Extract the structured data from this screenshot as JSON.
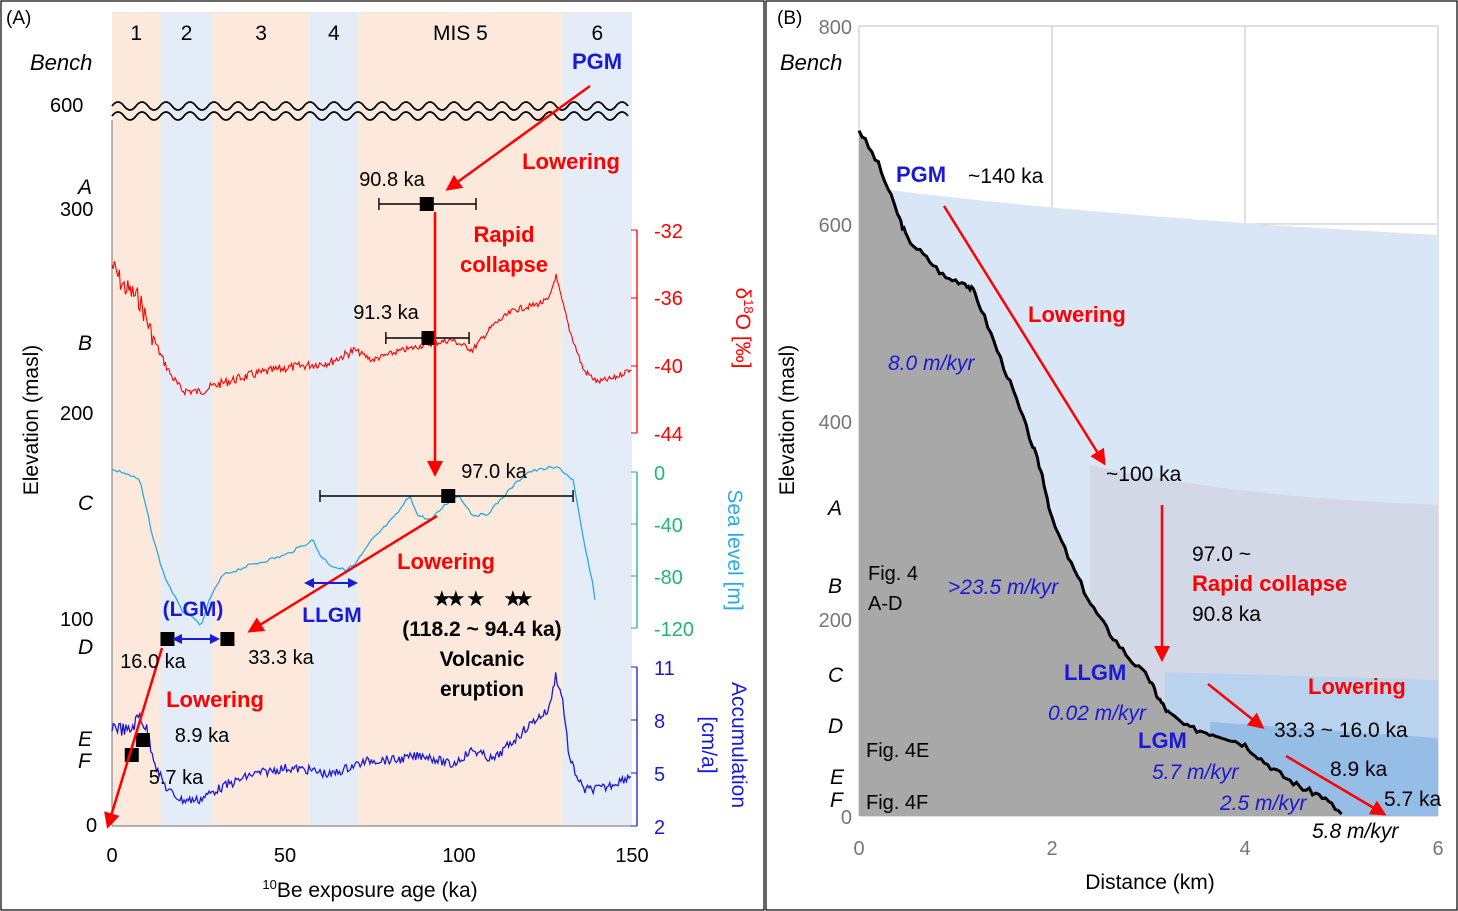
{
  "panel_a": {
    "label": "(A)",
    "bench_label": "Bench",
    "mis": {
      "stages": [
        {
          "label": "1",
          "start": 0,
          "end": 14,
          "color": "#fde9dc"
        },
        {
          "label": "2",
          "start": 14,
          "end": 29,
          "color": "#e3ecf7"
        },
        {
          "label": "3",
          "start": 29,
          "end": 57,
          "color": "#fde9dc"
        },
        {
          "label": "4",
          "start": 57,
          "end": 71,
          "color": "#e3ecf7"
        },
        {
          "label": "MIS 5",
          "start": 71,
          "end": 130,
          "color": "#fde9dc"
        },
        {
          "label": "6",
          "start": 130,
          "end": 150,
          "color": "#e3ecf7"
        }
      ]
    },
    "left_axis": {
      "label": "Elevation (masl)",
      "ticks": [
        "0",
        "100",
        "200",
        "300",
        "600"
      ],
      "bench_letters": [
        "A",
        "B",
        "C",
        "D",
        "E",
        "F"
      ]
    },
    "x_axis": {
      "label_sup": "10",
      "label_rest": "Be exposure age (ka)",
      "ticks": [
        "0",
        "50",
        "100",
        "150"
      ],
      "range": [
        0,
        150
      ]
    },
    "d18o_axis": {
      "label_pre": "δ",
      "label_sup": "18",
      "label_post": "O [‰]",
      "ticks": [
        "-32",
        "-36",
        "-40",
        "-44"
      ],
      "color": "#ff0000"
    },
    "sea_axis": {
      "label": "Sea level [m]",
      "ticks": [
        "0",
        "-40",
        "-80",
        "-120"
      ],
      "color": "#22b573"
    },
    "acc_axis": {
      "label_line1": "Accumulation",
      "label_line2": "[cm/a]",
      "ticks": [
        "11",
        "8",
        "5",
        "2"
      ],
      "color": "#1a1ad6"
    },
    "annotations": {
      "pgm": "PGM",
      "lowering": "Lowering",
      "rapid1": "Rapid",
      "rapid2": "collapse",
      "lgm": "(LGM)",
      "llgm": "LLGM",
      "volcanic_range": "(118.2 ~ 94.4 ka)",
      "volcanic1": "Volcanic",
      "volcanic2": "eruption",
      "age_a": "90.8 ka",
      "age_b": "91.3 ka",
      "age_c": "97.0 ka",
      "age_d1": "16.0 ka",
      "age_d2": "33.3 ka",
      "age_e": "8.9 ka",
      "age_f": "5.7 ka"
    }
  },
  "panel_b": {
    "label": "(B)",
    "bench_label": "Bench",
    "y_axis": {
      "label": "Elevation (masl)",
      "ticks": [
        "0",
        "200",
        "400",
        "600",
        "800"
      ]
    },
    "x_axis": {
      "label": "Distance (km)",
      "ticks": [
        "0",
        "2",
        "4",
        "6"
      ]
    },
    "bench_letters": [
      "A",
      "B",
      "C",
      "D",
      "E",
      "F"
    ],
    "annotations": {
      "pgm": "PGM",
      "pgm_age": "~140 ka",
      "lowering_top": "Lowering",
      "rate1": "8.0 m/kyr",
      "age_100": "~100 ka",
      "fig_ad1": "Fig. 4",
      "fig_ad2": "A-D",
      "rate2": ">23.5 m/kyr",
      "collapse_top": "97.0 ~",
      "collapse": "Rapid collapse",
      "collapse_bot": "90.8 ka",
      "llgm": "LLGM",
      "rate3": "0.02 m/kyr",
      "lgm": "LGM",
      "rate4": "5.7 m/kyr",
      "lowering_bottom": "Lowering",
      "age_range": "33.3 ~ 16.0 ka",
      "age_89": "8.9 ka",
      "age_57": "5.7 ka",
      "rate5": "2.5 m/kyr",
      "rate6": "5.8 m/kyr",
      "fig_4e": "Fig. 4E",
      "fig_4f": "Fig. 4F"
    }
  },
  "chart_data": [
    {
      "type": "scatter",
      "title": "",
      "xlabel": "10Be exposure age (ka)",
      "ylabel": "Elevation (masl)",
      "xlim": [
        0,
        150
      ],
      "series": [
        {
          "name": "Bench exposure ages",
          "points": [
            {
              "bench": "A",
              "age": 90.8,
              "err_low": 77,
              "err_high": 105
            },
            {
              "bench": "B",
              "age": 91.3,
              "err_low": 79,
              "err_high": 103
            },
            {
              "bench": "C",
              "age": 97.0,
              "err_low": 60,
              "err_high": 133
            },
            {
              "bench": "D",
              "age": 16.0
            },
            {
              "bench": "D",
              "age": 33.3
            },
            {
              "bench": "E",
              "age": 8.9
            },
            {
              "bench": "F",
              "age": 5.7
            }
          ]
        }
      ]
    },
    {
      "type": "line",
      "title": "",
      "xlabel": "Distance (km)",
      "ylabel": "Elevation (masl)",
      "xlim": [
        0,
        6
      ],
      "ylim": [
        0,
        800
      ],
      "series": [
        {
          "name": "Valley profile",
          "x": [
            0,
            0.2,
            0.4,
            0.5,
            0.7,
            0.9,
            1.1,
            1.2,
            1.4,
            1.6,
            1.8,
            1.9,
            2.0,
            2.2,
            2.4,
            2.6,
            2.8,
            3.0,
            3.1,
            3.2,
            3.4,
            3.6,
            3.8,
            4.0,
            4.2,
            4.4,
            4.6,
            4.8,
            5.0
          ],
          "y": [
            695,
            660,
            610,
            585,
            565,
            545,
            540,
            530,
            480,
            430,
            375,
            345,
            300,
            255,
            215,
            185,
            160,
            140,
            120,
            105,
            90,
            85,
            80,
            72,
            55,
            40,
            28,
            20,
            2
          ]
        },
        {
          "name": "PGM ice surface (~140 ka)",
          "x": [
            0.3,
            2,
            4,
            6
          ],
          "y": [
            630,
            615,
            600,
            590
          ]
        },
        {
          "name": "~100 ka ice surface",
          "x": [
            2.5,
            4,
            6
          ],
          "y": [
            350,
            325,
            315
          ]
        },
        {
          "name": "LLGM / LGM ice surface",
          "x": [
            3.2,
            4.5,
            6
          ],
          "y": [
            140,
            140,
            135
          ]
        }
      ]
    }
  ]
}
